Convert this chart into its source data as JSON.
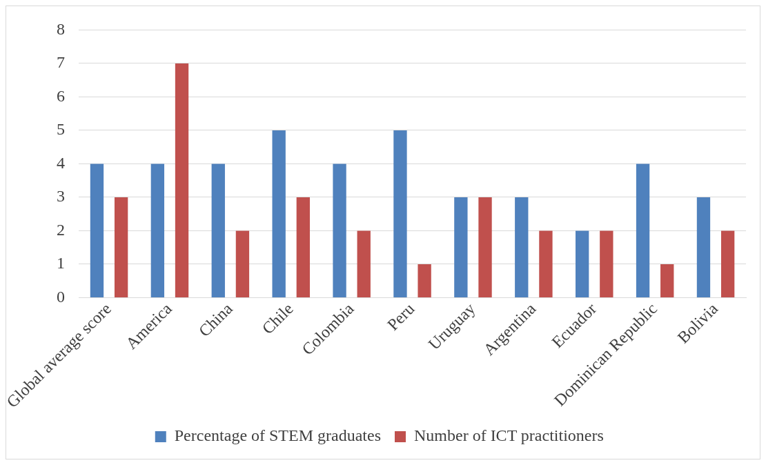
{
  "chart_data": {
    "type": "bar",
    "categories": [
      "Global average score",
      "America",
      "China",
      "Chile",
      "Colombia",
      "Peru",
      "Uruguay",
      "Argentina",
      "Ecuador",
      "Dominican Republic",
      "Bolivia"
    ],
    "series": [
      {
        "name": "Percentage of STEM graduates",
        "color": "#4f81bd",
        "values": [
          4,
          4,
          4,
          5,
          4,
          5,
          3,
          3,
          2,
          4,
          3
        ]
      },
      {
        "name": "Number of ICT practitioners",
        "color": "#c0504d",
        "values": [
          3,
          7,
          2,
          3,
          2,
          1,
          3,
          2,
          2,
          1,
          2
        ]
      }
    ],
    "ylim": [
      0,
      8
    ],
    "yticks": [
      0,
      1,
      2,
      3,
      4,
      5,
      6,
      7,
      8
    ],
    "grid": "y",
    "legend": "bottom"
  }
}
